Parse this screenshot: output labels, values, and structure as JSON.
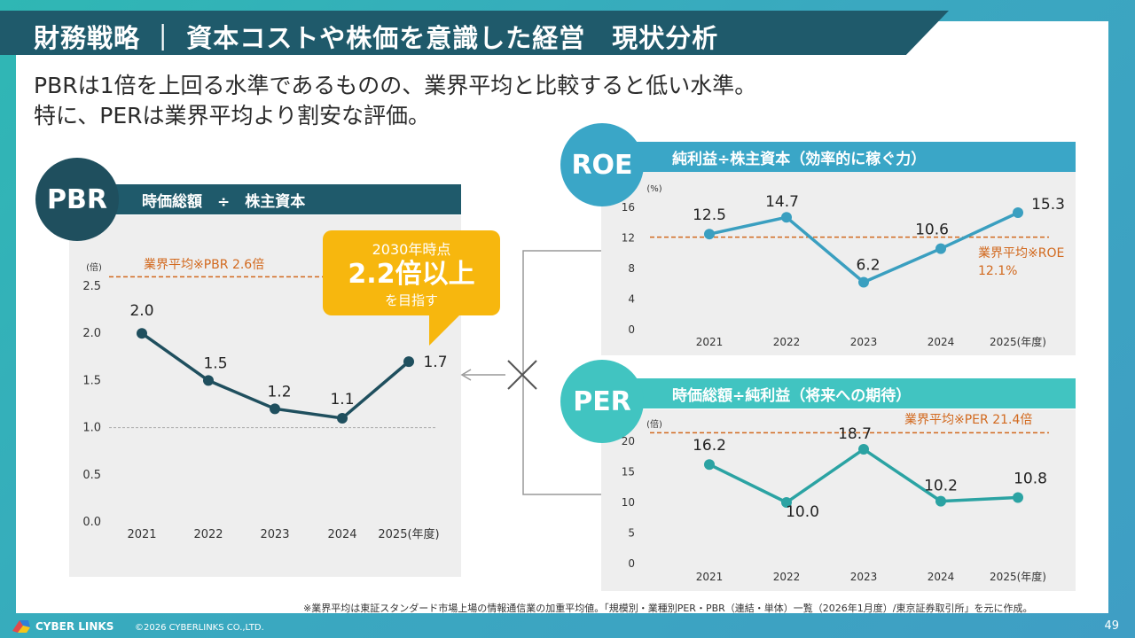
{
  "header": {
    "title": "財務戦略 ｜ 資本コストや株価を意識した経営　現状分析",
    "subtitle_line1": "PBRは1倍を上回る水準であるものの、業界平均と比較すると低い水準。",
    "subtitle_line2": "特に、PERは業界平均より割安な評価。"
  },
  "pbr": {
    "badge": "PBR",
    "formula": "時価総額　÷　株主資本",
    "benchmark_label": "業界平均※PBR 2.6倍",
    "callout": {
      "line1": "2030年時点",
      "line2": "2.2倍以上",
      "line3": "を目指す"
    }
  },
  "roe": {
    "badge": "ROE",
    "formula": "純利益÷株主資本（効率的に稼ぐ力）",
    "benchmark_label1": "業界平均※ROE",
    "benchmark_label2": "12.1%"
  },
  "per": {
    "badge": "PER",
    "formula": "時価総額÷純利益（将来への期待）",
    "benchmark_label": "業界平均※PER 21.4倍"
  },
  "chart_data": [
    {
      "id": "pbr",
      "type": "line",
      "categories": [
        "2021",
        "2022",
        "2023",
        "2024",
        "2025(年度)"
      ],
      "values": [
        2.0,
        1.5,
        1.2,
        1.1,
        1.7
      ],
      "value_labels": [
        "2.0",
        "1.5",
        "1.2",
        "1.1",
        "1.7"
      ],
      "y_ticks": [
        0.0,
        0.5,
        1.0,
        1.5,
        2.0,
        2.5
      ],
      "y_tick_labels": [
        "0.0",
        "0.5",
        "1.0",
        "1.5",
        "2.0",
        "2.5"
      ],
      "ylim": [
        0,
        2.5
      ],
      "ylabel": "(倍)",
      "reference_lines": [
        {
          "value": 2.6,
          "label": "業界平均※PBR 2.6倍"
        },
        {
          "value": 1.0,
          "label": ""
        }
      ],
      "color": "#1f4f5e"
    },
    {
      "id": "roe",
      "type": "line",
      "categories": [
        "2021",
        "2022",
        "2023",
        "2024",
        "2025(年度)"
      ],
      "values": [
        12.5,
        14.7,
        6.2,
        10.6,
        15.3
      ],
      "value_labels": [
        "12.5",
        "14.7",
        "6.2",
        "10.6",
        "15.3"
      ],
      "y_ticks": [
        0,
        4,
        8,
        12,
        16
      ],
      "y_tick_labels": [
        "0",
        "4",
        "8",
        "12",
        "16"
      ],
      "ylim": [
        0,
        16
      ],
      "ylabel": "(%)",
      "reference_lines": [
        {
          "value": 12.1,
          "label": "業界平均※ROE 12.1%"
        }
      ],
      "color": "#3a9fc0"
    },
    {
      "id": "per",
      "type": "line",
      "categories": [
        "2021",
        "2022",
        "2023",
        "2024",
        "2025(年度)"
      ],
      "values": [
        16.2,
        10.0,
        18.7,
        10.2,
        10.8
      ],
      "value_labels": [
        "16.2",
        "10.0",
        "18.7",
        "10.2",
        "10.8"
      ],
      "y_ticks": [
        0,
        5,
        10,
        15,
        20
      ],
      "y_tick_labels": [
        "0",
        "5",
        "10",
        "15",
        "20"
      ],
      "ylim": [
        0,
        20
      ],
      "ylabel": "(倍)",
      "reference_lines": [
        {
          "value": 21.4,
          "label": "業界平均※PER 21.4倍"
        }
      ],
      "color": "#2ba3a3"
    }
  ],
  "footnote": "※業界平均は東証スタンダード市場上場の情報通信業の加重平均値。「規模別・業種別PER・PBR（連結・単体）一覧（2026年1月度）/東京証券取引所」を元に作成。",
  "footer": {
    "logo": "CYBER LINKS",
    "copyright": "©2026 CYBERLINKS CO.,LTD.",
    "page": "49"
  },
  "colors": {
    "benchmark": "#d2691e",
    "callout": "#f7b70e"
  }
}
